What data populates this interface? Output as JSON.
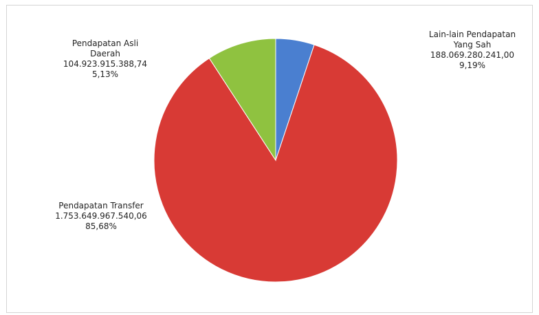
{
  "chart_data": {
    "type": "pie",
    "title": "",
    "slices": [
      {
        "name": "Pendapatan Asli Daerah",
        "value_text": "104.923.915.388,74",
        "value": 104923915388.74,
        "percent_text": "5,13%",
        "percent": 5.13,
        "color": "#4a7fd0"
      },
      {
        "name": "Pendapatan Transfer",
        "value_text": "1.753.649.967.540,06",
        "value": 1753649967540.06,
        "percent_text": "85,68%",
        "percent": 85.68,
        "color": "#d83a35"
      },
      {
        "name": "Lain-lain Pendapatan Yang Sah",
        "value_text": "188.069.280.241,00",
        "value": 188069280241.0,
        "percent_text": "9,19%",
        "percent": 9.19,
        "color": "#8fc240"
      }
    ],
    "labels": {
      "pad_line1": "Pendapatan Asli",
      "pad_line2": "Daerah",
      "lain_line1": "Lain-lain Pendapatan",
      "lain_line2": "Yang Sah"
    }
  }
}
